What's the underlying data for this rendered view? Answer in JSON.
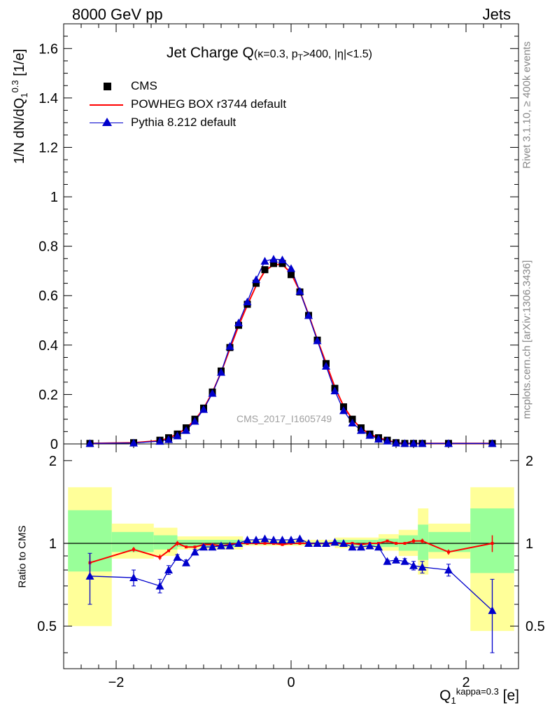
{
  "header": {
    "left": "8000 GeV pp",
    "right": "Jets"
  },
  "title": {
    "main": "Jet Charge Q",
    "sub": "(κ=0.3, p",
    "sub_t": "T",
    "sub_rest": ">400, |η|<1.5)"
  },
  "side_labels": {
    "rivet": "Rivet 3.1.10, ≥ 400k events",
    "mcplots": "mcplots.cern.ch [arXiv:1306.3436]"
  },
  "watermark": "CMS_2017_I1605749",
  "axes": {
    "ylabel_top": {
      "a": "1/N dN/dQ",
      "sub": "1",
      "sup": "0.3",
      "b": " [1/e]"
    },
    "ylabel_bottom": "Ratio to CMS",
    "xlabel": {
      "a": "Q",
      "sub": "1",
      "sup": "kappa=0.3",
      "b": " [e]"
    }
  },
  "legend": [
    {
      "label": "CMS",
      "color": "#000000",
      "marker": "square"
    },
    {
      "label": "POWHEG BOX r3744 default",
      "color": "#ff0000",
      "marker": "line"
    },
    {
      "label": "Pythia 8.212 default",
      "color": "#0000cc",
      "marker": "triangle"
    }
  ],
  "chart_data": {
    "type": "line",
    "xlim": [
      -2.6,
      2.6
    ],
    "top": {
      "ylim": [
        0,
        1.7
      ],
      "x_ticks": [
        -2,
        0,
        2
      ],
      "y_ticks": [
        0,
        0.2,
        0.4,
        0.6,
        0.8,
        1,
        1.2,
        1.4,
        1.6
      ],
      "y_tick_labels": [
        "0",
        "0.2",
        "0.4",
        "0.6",
        "0.8",
        "1",
        "1.2",
        "1.4",
        "1.6"
      ],
      "x": [
        -2.3,
        -1.8,
        -1.5,
        -1.4,
        -1.3,
        -1.2,
        -1.1,
        -1.0,
        -0.9,
        -0.8,
        -0.7,
        -0.6,
        -0.5,
        -0.4,
        -0.3,
        -0.2,
        -0.1,
        0.0,
        0.1,
        0.2,
        0.3,
        0.4,
        0.5,
        0.6,
        0.7,
        0.8,
        0.9,
        1.0,
        1.1,
        1.2,
        1.3,
        1.4,
        1.5,
        1.8,
        2.3
      ],
      "series": [
        {
          "name": "CMS",
          "color": "#000000",
          "marker": "square",
          "values": [
            0.002,
            0.005,
            0.015,
            0.025,
            0.04,
            0.065,
            0.1,
            0.145,
            0.21,
            0.295,
            0.39,
            0.48,
            0.565,
            0.65,
            0.705,
            0.73,
            0.73,
            0.685,
            0.615,
            0.52,
            0.42,
            0.325,
            0.225,
            0.15,
            0.1,
            0.065,
            0.04,
            0.025,
            0.015,
            0.005,
            0.002,
            0.002,
            0.002,
            0.002,
            0.002
          ]
        },
        {
          "name": "POWHEG BOX r3744 default",
          "color": "#ff0000",
          "marker": "line",
          "values": [
            0.002,
            0.005,
            0.013,
            0.024,
            0.04,
            0.063,
            0.097,
            0.143,
            0.208,
            0.29,
            0.385,
            0.478,
            0.562,
            0.64,
            0.7,
            0.725,
            0.727,
            0.69,
            0.618,
            0.523,
            0.422,
            0.327,
            0.23,
            0.153,
            0.1,
            0.063,
            0.04,
            0.025,
            0.015,
            0.005,
            0.002,
            0.002,
            0.002,
            0.002,
            0.002
          ]
        },
        {
          "name": "Pythia 8.212 default",
          "color": "#0000cc",
          "marker": "triangle",
          "values": [
            0.002,
            0.004,
            0.011,
            0.018,
            0.033,
            0.055,
            0.092,
            0.14,
            0.205,
            0.29,
            0.395,
            0.49,
            0.575,
            0.665,
            0.74,
            0.748,
            0.745,
            0.71,
            0.618,
            0.52,
            0.418,
            0.315,
            0.215,
            0.135,
            0.085,
            0.055,
            0.035,
            0.02,
            0.012,
            0.004,
            0.002,
            0.002,
            0.002,
            0.002,
            0.002
          ]
        }
      ]
    },
    "ratio": {
      "ylim": [
        0.35,
        2.3
      ],
      "y_ticks": [
        0.5,
        1,
        2
      ],
      "y_tick_labels": [
        "0.5",
        "1",
        "2"
      ],
      "bands": [
        {
          "x0": -2.55,
          "x1": -2.05,
          "yellow": [
            0.5,
            1.6
          ],
          "green": [
            0.79,
            1.32
          ]
        },
        {
          "x0": -2.05,
          "x1": -1.57,
          "yellow": [
            0.88,
            1.18
          ],
          "green": [
            0.93,
            1.1
          ]
        },
        {
          "x0": -1.57,
          "x1": -1.3,
          "yellow": [
            0.9,
            1.14
          ],
          "green": [
            0.95,
            1.07
          ]
        },
        {
          "x0": -1.3,
          "x1": -0.55,
          "yellow": [
            0.95,
            1.06
          ],
          "green": [
            0.97,
            1.03
          ]
        },
        {
          "x0": -0.55,
          "x1": 0.5,
          "yellow": [
            0.98,
            1.03
          ],
          "green": [
            0.99,
            1.01
          ]
        },
        {
          "x0": 0.5,
          "x1": 1.0,
          "yellow": [
            0.96,
            1.05
          ],
          "green": [
            0.98,
            1.03
          ]
        },
        {
          "x0": 1.0,
          "x1": 1.23,
          "yellow": [
            0.94,
            1.08
          ],
          "green": [
            0.97,
            1.04
          ]
        },
        {
          "x0": 1.23,
          "x1": 1.45,
          "yellow": [
            0.9,
            1.12
          ],
          "green": [
            0.94,
            1.07
          ]
        },
        {
          "x0": 1.45,
          "x1": 1.57,
          "yellow": [
            0.77,
            1.34
          ],
          "green": [
            0.87,
            1.17
          ]
        },
        {
          "x0": 1.57,
          "x1": 2.05,
          "yellow": [
            0.88,
            1.18
          ],
          "green": [
            0.93,
            1.1
          ]
        },
        {
          "x0": 2.05,
          "x1": 2.55,
          "yellow": [
            0.48,
            1.6
          ],
          "green": [
            0.78,
            1.34
          ]
        }
      ],
      "powheg": {
        "x": [
          -2.3,
          -1.8,
          -1.5,
          -1.4,
          -1.3,
          -1.2,
          -1.1,
          -1.0,
          -0.9,
          -0.8,
          -0.7,
          -0.6,
          -0.5,
          -0.4,
          -0.3,
          -0.2,
          -0.1,
          0.0,
          0.1,
          0.2,
          0.3,
          0.4,
          0.5,
          0.6,
          0.7,
          0.8,
          0.9,
          1.0,
          1.1,
          1.2,
          1.3,
          1.4,
          1.5,
          1.8,
          2.3
        ],
        "values": [
          0.85,
          0.95,
          0.89,
          0.94,
          1.0,
          0.97,
          0.97,
          0.99,
          0.99,
          0.98,
          0.99,
          1.0,
          1.0,
          1.0,
          1.0,
          1.0,
          0.99,
          1.0,
          1.0,
          1.0,
          1.0,
          1.0,
          1.0,
          1.0,
          1.0,
          0.99,
          1.0,
          1.0,
          1.02,
          1.0,
          1.0,
          1.02,
          1.02,
          0.93,
          1.0
        ],
        "err": [
          0.07,
          0.02,
          0.02,
          0.01,
          0.02,
          0.01,
          0.01,
          0.0,
          0.0,
          0.0,
          0.0,
          0.0,
          0.0,
          0.0,
          0.0,
          0.0,
          0.0,
          0.0,
          0.0,
          0.0,
          0.0,
          0.0,
          0.0,
          0.0,
          0.0,
          0.0,
          0.0,
          0.0,
          0.0,
          0.0,
          0.0,
          0.02,
          0.02,
          0.02,
          0.07
        ]
      },
      "pythia": {
        "x": [
          -2.3,
          -1.8,
          -1.5,
          -1.4,
          -1.3,
          -1.2,
          -1.1,
          -1.0,
          -0.9,
          -0.8,
          -0.7,
          -0.6,
          -0.5,
          -0.4,
          -0.3,
          -0.2,
          -0.1,
          0.0,
          0.1,
          0.2,
          0.3,
          0.4,
          0.5,
          0.6,
          0.7,
          0.8,
          0.9,
          1.0,
          1.1,
          1.2,
          1.3,
          1.4,
          1.5,
          1.8,
          2.3
        ],
        "values": [
          0.76,
          0.75,
          0.7,
          0.8,
          0.89,
          0.85,
          0.93,
          0.97,
          0.97,
          0.98,
          0.98,
          1.0,
          1.03,
          1.03,
          1.04,
          1.03,
          1.03,
          1.03,
          1.04,
          1.0,
          1.0,
          1.0,
          1.01,
          1.0,
          0.97,
          0.97,
          0.98,
          0.97,
          0.86,
          0.87,
          0.86,
          0.83,
          0.82,
          0.8,
          0.57
        ],
        "err": [
          0.16,
          0.05,
          0.04,
          0.03,
          0.02,
          0.02,
          0.02,
          0.01,
          0.01,
          0.01,
          0.0,
          0.0,
          0.0,
          0.0,
          0.0,
          0.0,
          0.0,
          0.0,
          0.0,
          0.0,
          0.0,
          0.0,
          0.0,
          0.0,
          0.0,
          0.0,
          0.0,
          0.0,
          0.01,
          0.01,
          0.02,
          0.03,
          0.04,
          0.04,
          0.17
        ]
      }
    },
    "x_tick_labels": [
      "−2",
      "0",
      "2"
    ]
  }
}
